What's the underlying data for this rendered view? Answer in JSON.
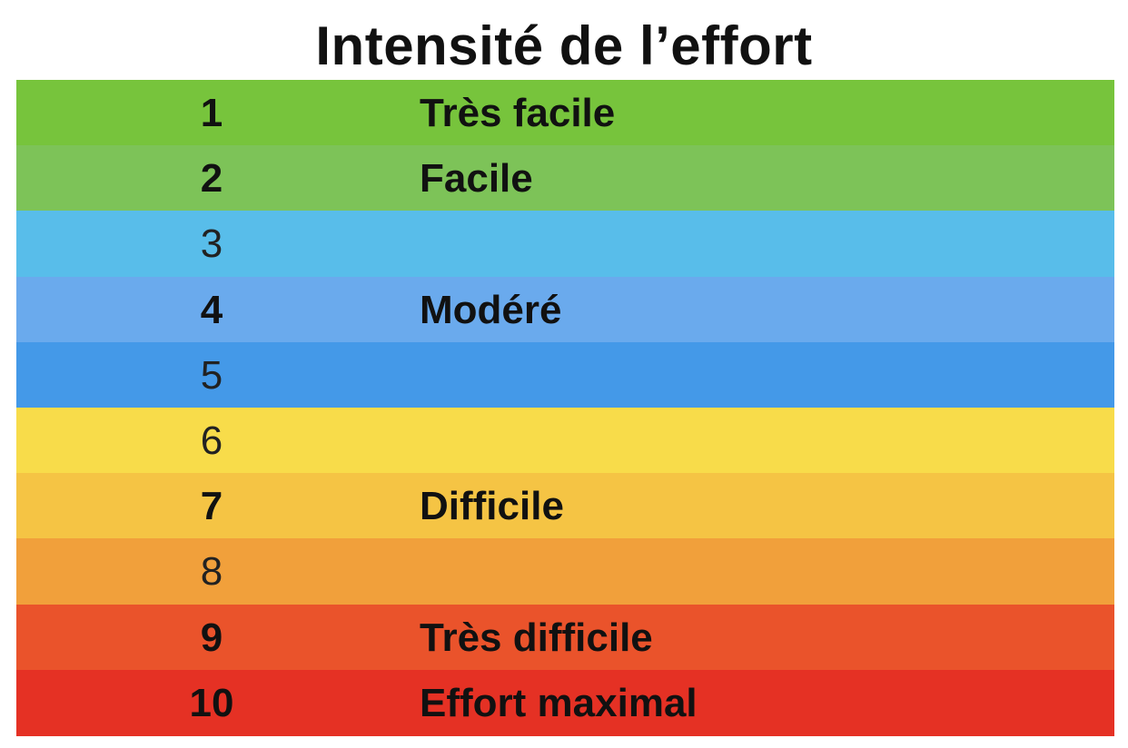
{
  "title": "Intensité de l’effort",
  "rows": [
    {
      "level": "1",
      "label": "Très facile",
      "color": "#77c43c",
      "bold": true
    },
    {
      "level": "2",
      "label": "Facile",
      "color": "#7dc358",
      "bold": true
    },
    {
      "level": "3",
      "label": "",
      "color": "#58bdea",
      "bold": false
    },
    {
      "level": "4",
      "label": "Modéré",
      "color": "#6aaaed",
      "bold": true
    },
    {
      "level": "5",
      "label": "",
      "color": "#4499e8",
      "bold": false
    },
    {
      "level": "6",
      "label": "",
      "color": "#f8dc4a",
      "bold": false
    },
    {
      "level": "7",
      "label": "Difficile",
      "color": "#f5c444",
      "bold": true
    },
    {
      "level": "8",
      "label": "",
      "color": "#f1a03b",
      "bold": false
    },
    {
      "level": "9",
      "label": "Très difficile",
      "color": "#ea532b",
      "bold": true
    },
    {
      "level": "10",
      "label": "Effort maximal",
      "color": "#e53124",
      "bold": true
    }
  ]
}
